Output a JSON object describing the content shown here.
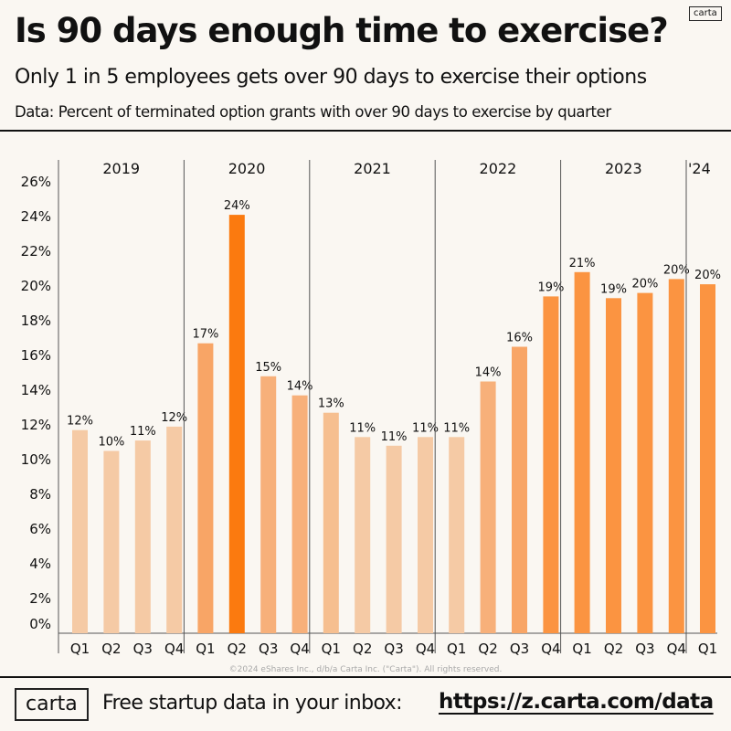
{
  "header": {
    "title": "Is 90 days enough time to exercise?",
    "subtitle": "Only 1 in 5 employees gets over 90 days to exercise their options",
    "description": "Data: Percent of terminated option grants with over 90 days to exercise by quarter",
    "logo_small": "carta"
  },
  "chart_data": {
    "type": "bar",
    "title": "Is 90 days enough time to exercise?",
    "ylabel": "Percent of terminated option grants with over 90 days to exercise",
    "ylim": [
      0,
      26
    ],
    "yticks": [
      "0%",
      "2%",
      "4%",
      "6%",
      "8%",
      "10%",
      "12%",
      "14%",
      "16%",
      "18%",
      "20%",
      "22%",
      "24%",
      "26%"
    ],
    "ytick_values": [
      0,
      2,
      4,
      6,
      8,
      10,
      12,
      14,
      16,
      18,
      20,
      22,
      24,
      26
    ],
    "groups": [
      {
        "year": "2019",
        "quarters": [
          "Q1",
          "Q2",
          "Q3",
          "Q4"
        ],
        "values": [
          11.7,
          10.5,
          11.1,
          11.9
        ],
        "labels": [
          "12%",
          "10%",
          "11%",
          "12%"
        ]
      },
      {
        "year": "2020",
        "quarters": [
          "Q1",
          "Q2",
          "Q3",
          "Q4"
        ],
        "values": [
          16.7,
          24.1,
          14.8,
          13.7
        ],
        "labels": [
          "17%",
          "24%",
          "15%",
          "14%"
        ]
      },
      {
        "year": "2021",
        "quarters": [
          "Q1",
          "Q2",
          "Q3",
          "Q4"
        ],
        "values": [
          12.7,
          11.3,
          10.8,
          11.3
        ],
        "labels": [
          "13%",
          "11%",
          "11%",
          "11%"
        ]
      },
      {
        "year": "2022",
        "quarters": [
          "Q1",
          "Q2",
          "Q3",
          "Q4"
        ],
        "values": [
          11.3,
          14.5,
          16.5,
          19.4
        ],
        "labels": [
          "11%",
          "14%",
          "16%",
          "19%"
        ]
      },
      {
        "year": "2023",
        "quarters": [
          "Q1",
          "Q2",
          "Q3",
          "Q4"
        ],
        "values": [
          20.8,
          19.3,
          19.6,
          20.4
        ],
        "labels": [
          "21%",
          "19%",
          "20%",
          "20%"
        ]
      },
      {
        "year": "'24",
        "quarters": [
          "Q1"
        ],
        "values": [
          20.1
        ],
        "labels": [
          "20%"
        ]
      }
    ],
    "colors": {
      "low": "#f5caa5",
      "mid": "#f7b07a",
      "high": "#fb9441",
      "max": "#fb7a0f"
    },
    "copyright": "©2024 eShares Inc., d/b/a Carta Inc. (\"Carta\"). All rights reserved."
  },
  "footer": {
    "logo": "carta",
    "text": "Free startup data in your inbox:",
    "link": "https://z.carta.com/data"
  }
}
